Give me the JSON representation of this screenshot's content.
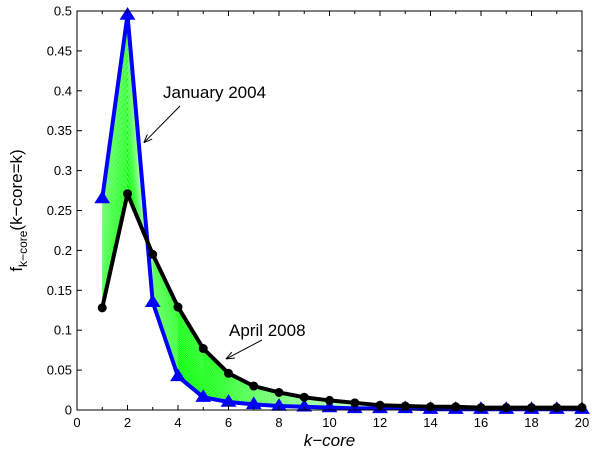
{
  "chart_data": {
    "type": "line",
    "xlabel": "k−core",
    "ylabel": {
      "main": "f",
      "sub": "k−core",
      "rest": "(k−core=k)"
    },
    "xlim": [
      0,
      20
    ],
    "ylim": [
      0,
      0.5
    ],
    "xticks": [
      "0",
      "2",
      "4",
      "6",
      "8",
      "10",
      "12",
      "14",
      "16",
      "18",
      "20"
    ],
    "yticks": [
      "0",
      "0.05",
      "0.1",
      "0.15",
      "0.2",
      "0.25",
      "0.3",
      "0.35",
      "0.4",
      "0.45",
      "0.5"
    ],
    "x": [
      1,
      2,
      3,
      4,
      5,
      6,
      7,
      8,
      9,
      10,
      11,
      12,
      13,
      14,
      15,
      16,
      17,
      18,
      19,
      20
    ],
    "series": [
      {
        "name": "January 2004",
        "color": "#0000ff",
        "marker": "triangle",
        "values": [
          0.265,
          0.495,
          0.135,
          0.042,
          0.016,
          0.01,
          0.007,
          0.005,
          0.004,
          0.003,
          0.002,
          0.002,
          0.002,
          0.001,
          0.001,
          0.001,
          0.001,
          0.001,
          0.001,
          0.001
        ]
      },
      {
        "name": "April 2008",
        "color": "#000000",
        "marker": "circle",
        "values": [
          0.128,
          0.271,
          0.195,
          0.129,
          0.077,
          0.046,
          0.03,
          0.022,
          0.016,
          0.012,
          0.009,
          0.006,
          0.005,
          0.004,
          0.004,
          0.003,
          0.003,
          0.003,
          0.003,
          0.003
        ]
      }
    ],
    "intermediate_color": "#00ff00",
    "annotations": [
      {
        "text": "January 2004",
        "target_x": 2.65,
        "target_y": 0.335
      },
      {
        "text": "April 2008",
        "target_x": 5.9,
        "target_y": 0.064
      }
    ],
    "grid": false
  }
}
